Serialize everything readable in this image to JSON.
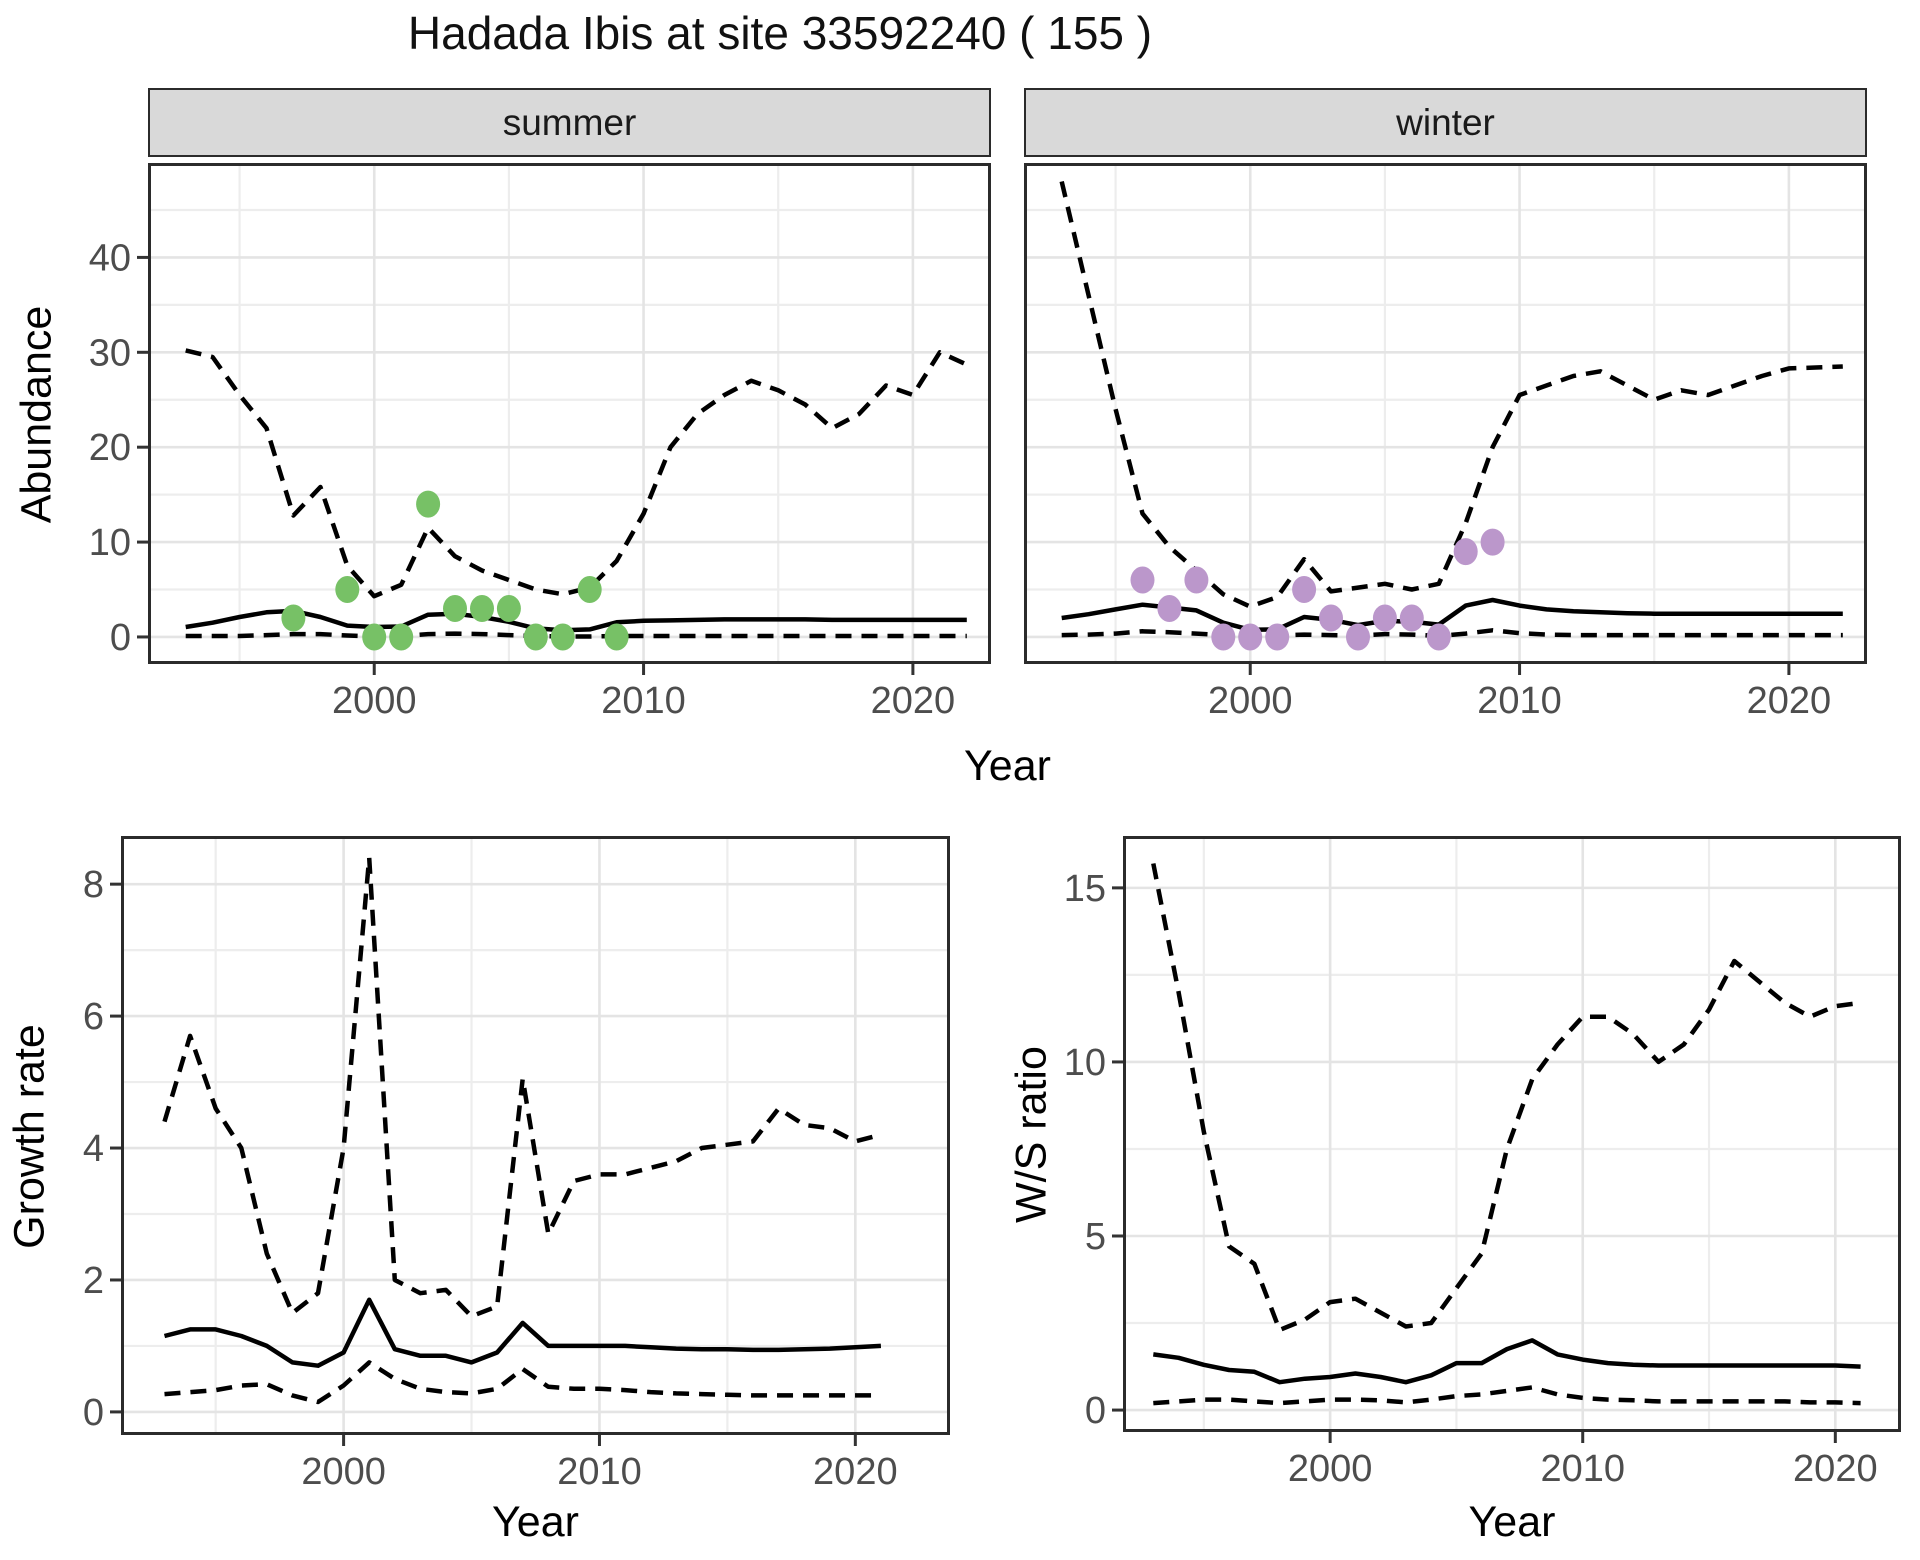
{
  "title": "Hadada Ibis at site 33592240 ( 155 )",
  "colors": {
    "line": "#000000",
    "summer_points": "#77C166",
    "winter_points": "#BB97CB",
    "grid_major": "#E4E4E4",
    "grid_minor": "#EDEDED",
    "strip_bg": "#D9D9D9",
    "panel_border": "#2B2B2B",
    "tick_mark": "#333333",
    "tick_text": "#4D4D4D"
  },
  "axes": {
    "x_label": "Year"
  },
  "chart_data": [
    {
      "type": "line",
      "facet": "summer",
      "xlabel": "Year",
      "ylabel": "Abundance",
      "xlim": [
        1991.6,
        2022.9
      ],
      "ylim": [
        -2.85,
        49.95
      ],
      "xticks": [
        2000,
        2010,
        2020
      ],
      "yticks": [
        0,
        10,
        20,
        30,
        40
      ],
      "xminor": [
        1995,
        2005,
        2015
      ],
      "yminor": [
        5,
        15,
        25,
        35,
        45
      ],
      "grid": true,
      "legend": "none",
      "years": [
        1993,
        1994,
        1995,
        1996,
        1997,
        1998,
        1999,
        2000,
        2001,
        2002,
        2003,
        2004,
        2005,
        2006,
        2007,
        2008,
        2009,
        2010,
        2011,
        2012,
        2013,
        2014,
        2015,
        2016,
        2017,
        2018,
        2019,
        2020,
        2021,
        2022
      ],
      "series": [
        {
          "name": "upper_ci",
          "style": "dashed",
          "values": [
            30.2,
            29.5,
            25.5,
            22.0,
            12.8,
            15.8,
            7.5,
            4.3,
            5.5,
            11.5,
            8.5,
            7.0,
            6.0,
            5.0,
            4.5,
            5.2,
            8.0,
            13.0,
            20.0,
            23.5,
            25.5,
            27.0,
            26.0,
            24.5,
            22.0,
            23.5,
            26.5,
            25.5,
            30.0,
            28.7
          ]
        },
        {
          "name": "lower_ci",
          "style": "dashed",
          "values": [
            0.1,
            0.1,
            0.1,
            0.2,
            0.3,
            0.3,
            0.15,
            0.05,
            0.1,
            0.3,
            0.35,
            0.3,
            0.2,
            0.1,
            0.05,
            0.05,
            0.1,
            0.1,
            0.1,
            0.1,
            0.1,
            0.1,
            0.1,
            0.1,
            0.1,
            0.1,
            0.1,
            0.1,
            0.1,
            0.1
          ]
        },
        {
          "name": "median",
          "style": "solid",
          "values": [
            1.05,
            1.5,
            2.1,
            2.6,
            2.75,
            2.1,
            1.2,
            1.05,
            1.1,
            2.35,
            2.45,
            2.1,
            1.6,
            0.9,
            0.7,
            0.8,
            1.55,
            1.7,
            1.75,
            1.8,
            1.85,
            1.85,
            1.85,
            1.85,
            1.8,
            1.8,
            1.8,
            1.8,
            1.8,
            1.8
          ]
        }
      ],
      "points": {
        "name": "observed counts",
        "color": "#77C166",
        "x": [
          1997,
          1999,
          2000,
          2001,
          2002,
          2003,
          2004,
          2005,
          2006,
          2007,
          2008,
          2009
        ],
        "y": [
          2,
          5,
          0,
          0,
          14,
          3,
          3,
          3,
          0,
          0,
          5,
          0
        ]
      }
    },
    {
      "type": "line",
      "facet": "winter",
      "xlabel": "Year",
      "ylabel": "Abundance",
      "xlim": [
        1991.6,
        2022.9
      ],
      "ylim": [
        -2.85,
        49.95
      ],
      "xticks": [
        2000,
        2010,
        2020
      ],
      "yticks": [
        0,
        10,
        20,
        30,
        40
      ],
      "xminor": [
        1995,
        2005,
        2015
      ],
      "yminor": [
        5,
        15,
        25,
        35,
        45
      ],
      "grid": true,
      "legend": "none",
      "years": [
        1993,
        1994,
        1995,
        1996,
        1997,
        1998,
        1999,
        2000,
        2001,
        2002,
        2003,
        2004,
        2005,
        2006,
        2007,
        2008,
        2009,
        2010,
        2011,
        2012,
        2013,
        2014,
        2015,
        2016,
        2017,
        2018,
        2019,
        2020,
        2021,
        2022
      ],
      "series": [
        {
          "name": "upper_ci",
          "style": "dashed",
          "values": [
            48.0,
            36.0,
            24.0,
            13.0,
            9.5,
            7.0,
            4.5,
            3.2,
            4.2,
            8.2,
            4.8,
            5.2,
            5.6,
            5.0,
            5.6,
            12.0,
            20.0,
            25.5,
            26.5,
            27.5,
            28.0,
            26.5,
            25.0,
            26.0,
            25.5,
            26.5,
            27.5,
            28.3,
            28.4,
            28.5
          ]
        },
        {
          "name": "lower_ci",
          "style": "dashed",
          "values": [
            0.2,
            0.25,
            0.35,
            0.6,
            0.5,
            0.35,
            0.2,
            0.12,
            0.15,
            0.25,
            0.2,
            0.15,
            0.3,
            0.25,
            0.1,
            0.35,
            0.7,
            0.4,
            0.25,
            0.2,
            0.2,
            0.2,
            0.2,
            0.2,
            0.2,
            0.2,
            0.2,
            0.2,
            0.2,
            0.2
          ]
        },
        {
          "name": "median",
          "style": "solid",
          "values": [
            2.0,
            2.4,
            2.9,
            3.4,
            3.1,
            2.8,
            1.5,
            0.75,
            0.8,
            2.1,
            1.8,
            1.25,
            1.7,
            1.6,
            1.3,
            3.3,
            3.9,
            3.3,
            2.9,
            2.7,
            2.6,
            2.5,
            2.45,
            2.45,
            2.45,
            2.45,
            2.45,
            2.45,
            2.45,
            2.45
          ]
        }
      ],
      "points": {
        "name": "observed counts",
        "color": "#BB97CB",
        "x": [
          1996,
          1997,
          1998,
          1999,
          2000,
          2001,
          2002,
          2003,
          2004,
          2005,
          2006,
          2007,
          2008,
          2009
        ],
        "y": [
          6,
          3,
          6,
          0,
          0,
          0,
          5,
          2,
          0,
          2,
          2,
          0,
          9,
          10
        ]
      }
    },
    {
      "type": "line",
      "facet": null,
      "xlabel": "Year",
      "ylabel": "Growth rate",
      "xlim": [
        1991.3,
        2023.7
      ],
      "ylim": [
        -0.35,
        8.73
      ],
      "xticks": [
        2000,
        2010,
        2020
      ],
      "yticks": [
        0,
        2,
        4,
        6,
        8
      ],
      "xminor": [
        1995,
        2005,
        2015
      ],
      "yminor": [
        1,
        3,
        5,
        7
      ],
      "grid": true,
      "legend": "none",
      "years": [
        1993,
        1994,
        1995,
        1996,
        1997,
        1998,
        1999,
        2000,
        2001,
        2002,
        2003,
        2004,
        2005,
        2006,
        2007,
        2008,
        2009,
        2010,
        2011,
        2012,
        2013,
        2014,
        2015,
        2016,
        2017,
        2018,
        2019,
        2020,
        2021
      ],
      "series": [
        {
          "name": "upper_ci",
          "style": "dashed",
          "values": [
            4.4,
            5.7,
            4.6,
            4.0,
            2.4,
            1.5,
            1.8,
            4.0,
            8.4,
            2.0,
            1.8,
            1.85,
            1.45,
            1.6,
            5.05,
            2.7,
            3.5,
            3.6,
            3.6,
            3.7,
            3.8,
            4.0,
            4.05,
            4.1,
            4.6,
            4.35,
            4.3,
            4.1,
            4.2
          ]
        },
        {
          "name": "lower_ci",
          "style": "dashed",
          "values": [
            0.27,
            0.3,
            0.33,
            0.4,
            0.42,
            0.25,
            0.15,
            0.4,
            0.75,
            0.5,
            0.35,
            0.3,
            0.28,
            0.35,
            0.65,
            0.38,
            0.35,
            0.35,
            0.33,
            0.3,
            0.28,
            0.27,
            0.26,
            0.25,
            0.25,
            0.25,
            0.25,
            0.25,
            0.25
          ]
        },
        {
          "name": "median",
          "style": "solid",
          "values": [
            1.15,
            1.25,
            1.25,
            1.15,
            1.0,
            0.75,
            0.7,
            0.9,
            1.7,
            0.95,
            0.85,
            0.85,
            0.75,
            0.9,
            1.35,
            1.0,
            1.0,
            1.0,
            1.0,
            0.98,
            0.96,
            0.95,
            0.95,
            0.94,
            0.94,
            0.95,
            0.96,
            0.98,
            1.0
          ]
        }
      ],
      "points": null
    },
    {
      "type": "line",
      "facet": null,
      "xlabel": "Year",
      "ylabel": "W/S ratio",
      "xlim": [
        1991.8,
        2022.6
      ],
      "ylim": [
        -0.63,
        16.49
      ],
      "xticks": [
        2000,
        2010,
        2020
      ],
      "yticks": [
        0,
        5,
        10,
        15
      ],
      "xminor": [
        1995,
        2005,
        2015
      ],
      "yminor": [
        2.5,
        7.5,
        12.5
      ],
      "grid": true,
      "legend": "none",
      "years": [
        1993,
        1994,
        1995,
        1996,
        1997,
        1998,
        1999,
        2000,
        2001,
        2002,
        2003,
        2004,
        2005,
        2006,
        2007,
        2008,
        2009,
        2010,
        2011,
        2012,
        2013,
        2014,
        2015,
        2016,
        2017,
        2018,
        2019,
        2020,
        2021
      ],
      "series": [
        {
          "name": "upper_ci",
          "style": "dashed",
          "values": [
            15.7,
            12.0,
            8.0,
            4.7,
            4.2,
            2.3,
            2.6,
            3.1,
            3.2,
            2.8,
            2.4,
            2.5,
            3.5,
            4.5,
            7.5,
            9.5,
            10.5,
            11.3,
            11.3,
            10.8,
            10.0,
            10.5,
            11.5,
            12.9,
            12.3,
            11.7,
            11.3,
            11.6,
            11.7
          ]
        },
        {
          "name": "lower_ci",
          "style": "dashed",
          "values": [
            0.2,
            0.25,
            0.3,
            0.3,
            0.25,
            0.2,
            0.25,
            0.3,
            0.3,
            0.28,
            0.22,
            0.3,
            0.4,
            0.45,
            0.55,
            0.65,
            0.45,
            0.35,
            0.3,
            0.28,
            0.25,
            0.25,
            0.25,
            0.25,
            0.25,
            0.25,
            0.22,
            0.22,
            0.2
          ]
        },
        {
          "name": "median",
          "style": "solid",
          "values": [
            1.6,
            1.5,
            1.3,
            1.15,
            1.1,
            0.8,
            0.9,
            0.95,
            1.05,
            0.95,
            0.8,
            1.0,
            1.35,
            1.35,
            1.75,
            2.0,
            1.6,
            1.45,
            1.35,
            1.3,
            1.28,
            1.28,
            1.28,
            1.28,
            1.28,
            1.28,
            1.28,
            1.28,
            1.25
          ]
        }
      ],
      "points": null
    }
  ]
}
